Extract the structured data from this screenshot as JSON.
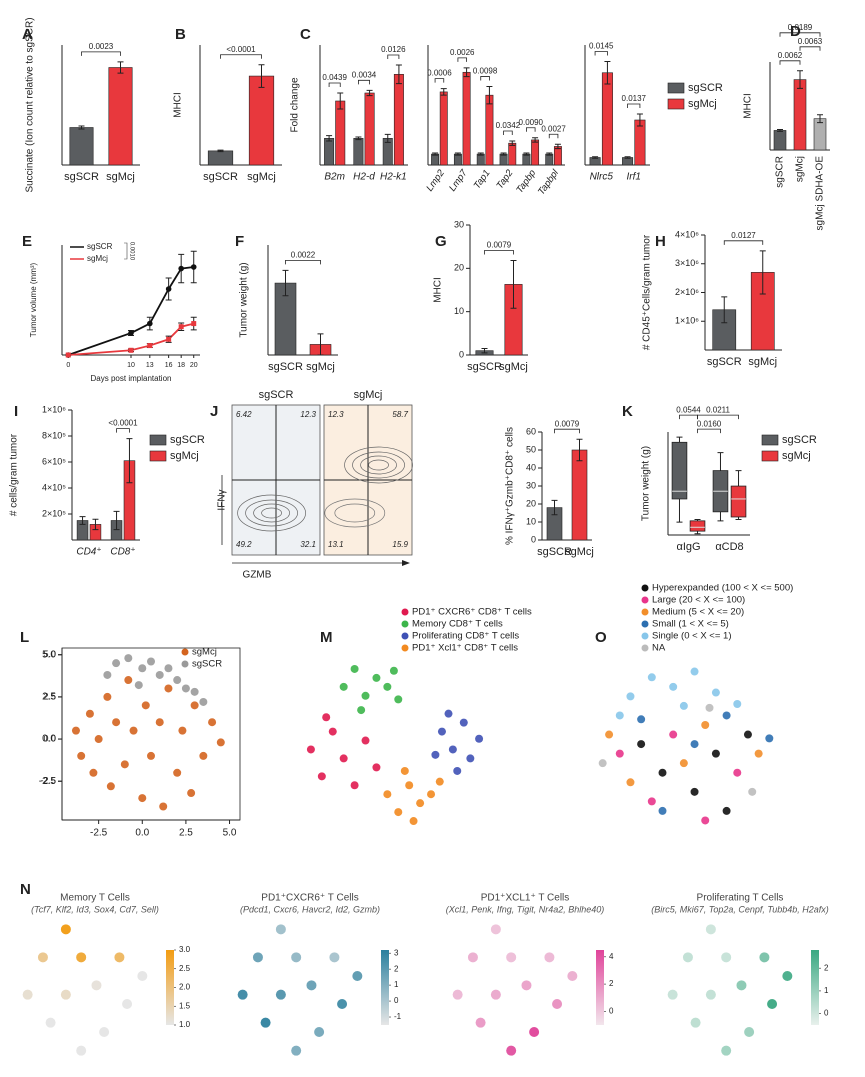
{
  "chart_data": [
    {
      "type": "bar",
      "panel_label": "A",
      "ylabel": "Succinate (Ion count relative to sgSCR)",
      "categories": [
        "sgSCR",
        "sgMcj"
      ],
      "values": [
        1.0,
        2.6
      ],
      "errors": [
        0.04,
        0.15
      ],
      "colors": [
        "#5a5d60",
        "#e8383d"
      ],
      "ylim": [
        0,
        3.2
      ],
      "annotations": [
        "0.0023"
      ]
    },
    {
      "type": "bar",
      "panel_label": "B",
      "ylabel": "MHCI",
      "categories": [
        "sgSCR",
        "sgMcj"
      ],
      "values": [
        1.0,
        6.3
      ],
      "errors": [
        0.05,
        0.8
      ],
      "colors": [
        "#5a5d60",
        "#e8383d"
      ],
      "ylim": [
        0,
        8.5
      ],
      "annotations": [
        "<0.0001"
      ]
    },
    {
      "type": "grouped",
      "panel_label": "C",
      "ylabel": "Fold change",
      "categories": [
        "B2m",
        "H2-d",
        "H2-k1"
      ],
      "series": [
        {
          "color": "#5a5d60",
          "values": [
            1,
            1,
            1
          ],
          "errors": [
            0.1,
            0.05,
            0.15
          ]
        },
        {
          "color": "#e8383d",
          "values": [
            2.4,
            2.7,
            3.4
          ],
          "errors": [
            0.3,
            0.1,
            0.35
          ]
        }
      ],
      "ylim": [
        0,
        4.5
      ],
      "annotations": [
        "0.0439",
        "0.0034",
        "0.0126"
      ]
    },
    {
      "type": "grouped",
      "categories": [
        "Lmp2",
        "Lmp7",
        "Tap1",
        "Tap2",
        "Tapbp",
        "Tapbpl"
      ],
      "series": [
        {
          "color": "#5a5d60",
          "values": [
            1,
            1,
            1,
            1,
            1,
            1
          ],
          "errors": [
            0.1,
            0.1,
            0.1,
            0.1,
            0.1,
            0.1
          ]
        },
        {
          "color": "#e8383d",
          "values": [
            6.7,
            8.5,
            6.4,
            2.0,
            2.3,
            1.7
          ],
          "errors": [
            0.3,
            0.4,
            0.8,
            0.2,
            0.2,
            0.2
          ]
        }
      ],
      "ylim": [
        0,
        11
      ],
      "annotations": [
        "0.0006",
        "0.0026",
        "0.0098",
        "0.0342",
        "0.0090",
        "0.0027"
      ]
    },
    {
      "type": "grouped",
      "categories": [
        "Nlrc5",
        "Irf1"
      ],
      "series": [
        {
          "name": "sgSCR",
          "color": "#5a5d60",
          "values": [
            1,
            1
          ],
          "errors": [
            0.1,
            0.1
          ]
        },
        {
          "name": "sgMcj",
          "color": "#e8383d",
          "values": [
            12.3,
            6.0
          ],
          "errors": [
            1.5,
            0.8
          ]
        }
      ],
      "ylim": [
        0,
        16
      ],
      "annotations": [
        "0.0145",
        "0.0137"
      ]
    },
    {
      "type": "bar",
      "panel_label": "D",
      "ylabel": "MHCI",
      "categories": [
        "sgSCR",
        "sgMcj",
        "sgMcj SDHA-OE"
      ],
      "values": [
        1.0,
        3.6,
        1.6
      ],
      "errors": [
        0.05,
        0.45,
        0.2
      ],
      "colors": [
        "#5a5d60",
        "#e8383d",
        "#b0b0b0"
      ],
      "ylim": [
        0,
        4.5
      ],
      "annotations": [
        "0.0062",
        "0.0063",
        "0.0189"
      ]
    },
    {
      "type": "line",
      "panel_label": "E",
      "ylabel": "Tumor volume (mm³)",
      "xlabel": "Days post implantation",
      "x": [
        0,
        10,
        13,
        16,
        18,
        20
      ],
      "xlim": [
        -1,
        21
      ],
      "xticks": [
        0,
        10,
        13,
        16,
        18,
        20
      ],
      "ylim": [
        0,
        350
      ],
      "series": [
        {
          "name": "sgSCR",
          "color": "#111111",
          "values": [
            0,
            70,
            100,
            210,
            275,
            280
          ],
          "errors": [
            0,
            8,
            20,
            35,
            45,
            50
          ]
        },
        {
          "name": "sgMcj",
          "color": "#e8383d",
          "values": [
            0,
            15,
            30,
            50,
            90,
            100
          ],
          "errors": [
            0,
            4,
            6,
            10,
            12,
            20
          ]
        }
      ],
      "annotations": [
        "0.0010"
      ]
    },
    {
      "type": "bar",
      "panel_label": "F",
      "ylabel": "Tumor weight (g)",
      "categories": [
        "sgSCR",
        "sgMcj"
      ],
      "values": [
        1.7,
        0.25
      ],
      "errors": [
        0.3,
        0.25
      ],
      "colors": [
        "#5a5d60",
        "#e8383d"
      ],
      "ylim": [
        0,
        2.6
      ],
      "annotations": [
        "0.0022"
      ]
    },
    {
      "type": "bar",
      "panel_label": "G",
      "ylabel": "MHCI",
      "categories": [
        "sgSCR",
        "sgMcj"
      ],
      "values": [
        1.0,
        16.3
      ],
      "errors": [
        0.5,
        5.5
      ],
      "colors": [
        "#5a5d60",
        "#e8383d"
      ],
      "ylim": [
        0,
        30
      ],
      "yticks": [
        0,
        10,
        20,
        30
      ],
      "annotations": [
        "0.0079"
      ]
    },
    {
      "type": "bar",
      "panel_label": "H",
      "ylabel": "# CD45⁺Cells/gram tumor",
      "categories": [
        "sgSCR",
        "sgMcj"
      ],
      "values": [
        1400000,
        2700000
      ],
      "errors": [
        450000,
        750000
      ],
      "colors": [
        "#5a5d60",
        "#e8383d"
      ],
      "ylim": [
        0,
        4000000
      ],
      "yticks": [
        {
          "value": 1000000,
          "label": "1×10⁶"
        },
        {
          "value": 2000000,
          "label": "2×10⁶"
        },
        {
          "value": 3000000,
          "label": "3×10⁶"
        },
        {
          "value": 4000000,
          "label": "4×10⁶"
        }
      ],
      "annotations": [
        "0.0127"
      ]
    },
    {
      "type": "grouped",
      "panel_label": "I",
      "ylabel": "# cells/gram tumor",
      "categories": [
        "CD4⁺",
        "CD8⁺"
      ],
      "series": [
        {
          "name": "sgSCR",
          "color": "#5a5d60",
          "values": [
            150000,
            150000
          ],
          "errors": [
            30000,
            70000
          ]
        },
        {
          "name": "sgMcj",
          "color": "#e8383d",
          "values": [
            120000,
            610000
          ],
          "errors": [
            40000,
            170000
          ]
        }
      ],
      "ylim": [
        0,
        1000000
      ],
      "yticks": [
        {
          "value": 200000,
          "label": "2×10⁵"
        },
        {
          "value": 400000,
          "label": "4×10⁵"
        },
        {
          "value": 600000,
          "label": "6×10⁵"
        },
        {
          "value": 800000,
          "label": "8×10⁵"
        },
        {
          "value": 1000000,
          "label": "1×10⁶"
        }
      ],
      "annotations": [
        "<0.0001"
      ]
    },
    {
      "type": "flow",
      "panel_label": "J",
      "xlabel": "GZMB",
      "ylabel": "IFNγ",
      "samples": [
        {
          "title": "sgSCR",
          "color": "#eef1f4",
          "quadrants": [
            6.42,
            12.3,
            49.2,
            32.1
          ]
        },
        {
          "title": "sgMcj",
          "color": "#fbeee0",
          "quadrants": [
            12.3,
            58.7,
            13.1,
            15.9
          ]
        }
      ]
    },
    {
      "type": "bar",
      "ylabel": "% IFNγ⁺Gzmb⁺CD8⁺ cells",
      "categories": [
        "sgSCR",
        "sgMcj"
      ],
      "values": [
        18,
        50
      ],
      "errors": [
        4,
        6
      ],
      "colors": [
        "#5a5d60",
        "#e8383d"
      ],
      "ylim": [
        0,
        60
      ],
      "yticks": [
        0,
        10,
        20,
        30,
        40,
        50,
        60
      ],
      "annotations": [
        "0.0079"
      ]
    },
    {
      "type": "box",
      "panel_label": "K",
      "ylabel": "Tumor weight (g)",
      "categories": [
        "αIgG",
        "αCD8"
      ],
      "ylim": [
        0,
        4
      ],
      "series": [
        {
          "name": "sgSCR",
          "color": "#5a5d60",
          "boxes": [
            {
              "min": 0.5,
              "q1": 1.4,
              "median": 1.7,
              "q3": 3.6,
              "max": 3.8
            },
            {
              "min": 0.55,
              "q1": 0.9,
              "median": 1.7,
              "q3": 2.5,
              "max": 3.2
            }
          ]
        },
        {
          "name": "sgMcj",
          "color": "#e8383d",
          "boxes": [
            {
              "min": 0.05,
              "q1": 0.15,
              "median": 0.3,
              "q3": 0.55,
              "max": 0.6
            },
            {
              "min": 0.6,
              "q1": 0.7,
              "median": 1.4,
              "q3": 1.9,
              "max": 2.5
            }
          ]
        }
      ],
      "annotations": [
        "0.0544",
        "0.0160",
        "0.0211"
      ]
    },
    {
      "type": "scatter",
      "panel_label": "L",
      "xlim": [
        -4.6,
        5.6
      ],
      "ylim": [
        -4.8,
        5.4
      ],
      "xticks": [
        -2.5,
        {
          "value": 0,
          "label": "0.0"
        },
        2.5,
        {
          "value": 5,
          "label": "5.0"
        }
      ],
      "yticks": [
        -2.5,
        {
          "value": 0,
          "label": "0.0"
        },
        2.5,
        {
          "value": 5,
          "label": "5.0"
        }
      ],
      "series": [
        {
          "name": "sgMcj",
          "color": "#d4641f",
          "x": [
            -3.8,
            -3.5,
            -3,
            -2.8,
            -2.5,
            -2,
            -1.8,
            -1.5,
            -1,
            -0.8,
            -0.5,
            0,
            0.2,
            0.5,
            1,
            1.2,
            1.5,
            2,
            2.3,
            2.8,
            3,
            3.5,
            4,
            4.5
          ],
          "y": [
            0.5,
            -1,
            1.5,
            -2,
            0,
            2.5,
            -2.8,
            1,
            -1.5,
            3.5,
            0.5,
            -3.5,
            2,
            -1,
            1,
            -4,
            3,
            -2,
            0.5,
            -3.2,
            2,
            -1,
            1,
            -0.2
          ]
        },
        {
          "name": "sgSCR",
          "color": "#9a9a9a",
          "x": [
            -1.5,
            -0.8,
            0,
            0.5,
            1,
            1.5,
            2,
            2.5,
            3,
            -2,
            -0.2,
            3.5
          ],
          "y": [
            4.5,
            4.8,
            4.2,
            4.6,
            3.8,
            4.2,
            3.5,
            3,
            2.8,
            3.8,
            3.2,
            2.2
          ]
        }
      ]
    },
    {
      "type": "scatter",
      "panel_label": "M",
      "series": [
        {
          "name": "PD1⁺ CXCR6⁺ CD8⁺ T cells",
          "color": "#e0194f",
          "x": [
            -3.5,
            -3,
            -2.5,
            -2,
            -1.5,
            -1,
            -0.5,
            -2.8
          ],
          "y": [
            0,
            -1.5,
            1,
            -0.5,
            -2,
            0.5,
            -1,
            1.8
          ]
        },
        {
          "name": "Memory CD8⁺ T cells",
          "color": "#3cb54a",
          "x": [
            -2,
            -1.5,
            -1,
            -0.5,
            0,
            0.5,
            -1.2,
            0.3
          ],
          "y": [
            3.5,
            4.5,
            3,
            4,
            3.5,
            2.8,
            2.2,
            4.4
          ]
        },
        {
          "name": "Proliferating CD8⁺ T cells",
          "color": "#3f51b5",
          "x": [
            2.5,
            3,
            3.5,
            3.8,
            2.8,
            4.2,
            3.2,
            2.2
          ],
          "y": [
            1,
            0,
            1.5,
            -0.5,
            2,
            0.6,
            -1.2,
            -0.3
          ]
        },
        {
          "name": "PD1⁺ Xcl1⁺ CD8⁺ T cells",
          "color": "#f28a20",
          "x": [
            0,
            0.5,
            1,
            1.5,
            2,
            1.2,
            0.8,
            2.4
          ],
          "y": [
            -2.5,
            -3.5,
            -2,
            -3,
            -2.5,
            -4,
            -1.2,
            -1.8
          ]
        }
      ]
    },
    {
      "type": "scatter",
      "panel_label": "O",
      "series": [
        {
          "name": "Hyperexpanded (100 < X <= 500)",
          "color": "#111111",
          "x": [
            -1,
            0.5,
            1.5,
            2,
            -2,
            3
          ],
          "y": [
            -1,
            -2,
            0,
            -3,
            0.5,
            1
          ]
        },
        {
          "name": "Large (20 < X <= 100)",
          "color": "#e8358b",
          "x": [
            -3,
            -0.5,
            1,
            2.5,
            -1.5
          ],
          "y": [
            0,
            1,
            -3.5,
            -1,
            -2.5
          ]
        },
        {
          "name": "Medium (5 < X <= 20)",
          "color": "#f28e2b",
          "x": [
            -2.5,
            0,
            3.5,
            1,
            -3.5
          ],
          "y": [
            -1.5,
            -0.5,
            0,
            1.5,
            1
          ]
        },
        {
          "name": "Small (1 < X <= 5)",
          "color": "#2c6fb0",
          "x": [
            -2,
            0.5,
            2,
            -1,
            4
          ],
          "y": [
            1.8,
            0.5,
            2,
            -3,
            0.8
          ]
        },
        {
          "name": "Single (0 < X <= 1)",
          "color": "#87c6ea",
          "x": [
            -1.5,
            -0.5,
            0.5,
            1.5,
            -2.5,
            2.5,
            -3,
            0
          ],
          "y": [
            4,
            3.5,
            4.3,
            3.2,
            3,
            2.6,
            2,
            2.5
          ]
        },
        {
          "name": "NA",
          "color": "#bbbbbb",
          "x": [
            1.2,
            3.2,
            -3.8
          ],
          "y": [
            2.4,
            -2,
            -0.5
          ]
        }
      ]
    },
    {
      "type": "feature",
      "panel_label": "N",
      "title": "Memory T Cells",
      "subtitle": "(Tcf7, Klf2, Id3, Sox4, Cd7, Sell)",
      "colors": [
        "#e6e6e6",
        "#f39c12"
      ],
      "clim": [
        1,
        3
      ],
      "cticks": [
        {
          "value": 1,
          "label": "1.0"
        },
        1.5,
        {
          "value": 2,
          "label": "2.0"
        },
        2.5,
        {
          "value": 3,
          "label": "3.0"
        }
      ],
      "x": [
        -3.5,
        -2.5,
        -2,
        -1,
        -1,
        0,
        0,
        1,
        1.5,
        2.5,
        3,
        4
      ],
      "y": [
        0,
        2,
        -1.5,
        3.5,
        0,
        -3,
        2,
        0.5,
        -2,
        2,
        -0.5,
        1
      ],
      "values": [
        1.2,
        1.8,
        1.0,
        2.9,
        1.3,
        1.0,
        2.6,
        1.1,
        1.0,
        2.2,
        1.0,
        1.0
      ]
    },
    {
      "type": "feature",
      "title": "PD1⁺CXCR6⁺ T Cells",
      "subtitle": "(Pdcd1, Cxcr6, Havcr2, Id2, Gzmb)",
      "colors": [
        "#e6e6e6",
        "#2a7f9e"
      ],
      "clim": [
        -1.5,
        3.2
      ],
      "cticks": [
        -1,
        0,
        1,
        2,
        3
      ],
      "x": [
        -3.5,
        -2.5,
        -2,
        -1,
        -1,
        0,
        0,
        1,
        1.5,
        2.5,
        3,
        4
      ],
      "y": [
        0,
        2,
        -1.5,
        3.5,
        0,
        -3,
        2,
        0.5,
        -2,
        2,
        -0.5,
        1
      ],
      "values": [
        2.5,
        1.5,
        2.8,
        0.2,
        2.0,
        1.0,
        0.5,
        1.5,
        1.2,
        0.0,
        2.4,
        1.8
      ]
    },
    {
      "type": "feature",
      "title": "PD1⁺XCL1⁺ T Cells",
      "subtitle": "(Xcl1, Penk, Ifng, Tigit, Nr4a2, Bhlhe40)",
      "colors": [
        "#f2e6ec",
        "#e0449a"
      ],
      "clim": [
        -1,
        4.5
      ],
      "cticks": [
        0,
        2,
        4
      ],
      "x": [
        -3.5,
        -2.5,
        -2,
        -1,
        -1,
        0,
        0,
        1,
        1.5,
        2.5,
        3,
        4
      ],
      "y": [
        0,
        2,
        -1.5,
        3.5,
        0,
        -3,
        2,
        0.5,
        -2,
        2,
        -0.5,
        1
      ],
      "values": [
        0.5,
        0.8,
        1.5,
        0.2,
        1.0,
        3.8,
        0.3,
        1.2,
        4.2,
        0.5,
        1.8,
        0.8
      ]
    },
    {
      "type": "feature",
      "title": "Proliferating T Cells",
      "subtitle": "(Birc5, Mki67, Top2a, Cenpf, Tubb4b, H2afx)",
      "colors": [
        "#e8f0ec",
        "#3aa882"
      ],
      "clim": [
        -0.5,
        2.8
      ],
      "cticks": [
        0,
        1,
        2
      ],
      "x": [
        -3.5,
        -2.5,
        -2,
        -1,
        -1,
        0,
        0,
        1,
        1.5,
        2.5,
        3,
        4
      ],
      "y": [
        0,
        2,
        -1.5,
        3.5,
        0,
        -3,
        2,
        0.5,
        -2,
        2,
        -0.5,
        1
      ],
      "values": [
        0.1,
        0.2,
        0.3,
        0.0,
        0.2,
        0.8,
        0.1,
        1.2,
        0.9,
        1.5,
        2.6,
        2.4
      ]
    }
  ]
}
